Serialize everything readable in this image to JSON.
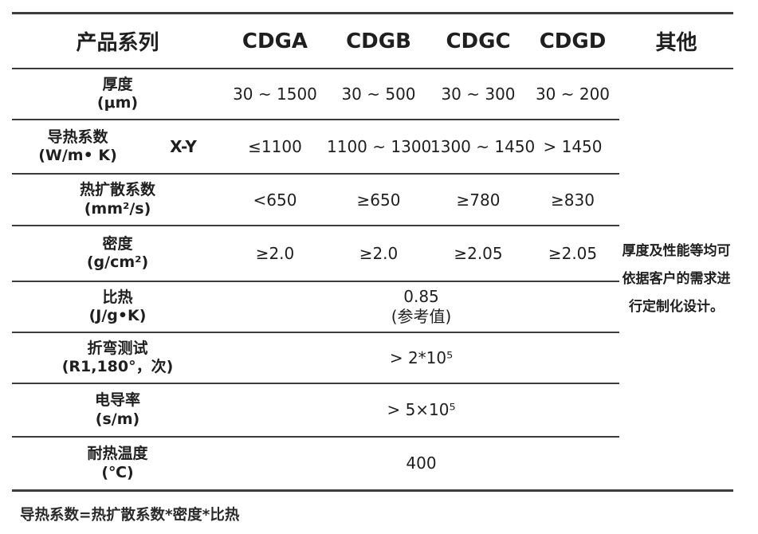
{
  "table": {
    "header": {
      "series_label": "产品系列",
      "col_a": "CDGA",
      "col_b": "CDGB",
      "col_c": "CDGC",
      "col_d": "CDGD",
      "other": "其他"
    },
    "rows": {
      "thickness": {
        "name": "厚度",
        "unit": "(μm)",
        "values": [
          "30 ~ 1500",
          "30 ~ 500",
          "30 ~ 300",
          "30 ~ 200"
        ]
      },
      "thermal_conductivity": {
        "name": "导热系数",
        "unit": "(W/m• K)",
        "sublabel": "X-Y",
        "values": [
          "≤1100",
          "1100 ~ 1300",
          "1300 ~ 1450",
          "> 1450"
        ]
      },
      "thermal_diffusivity": {
        "name": "热扩散系数",
        "unit": "(mm²/s)",
        "values": [
          "<650",
          "≥650",
          "≥780",
          "≥830"
        ]
      },
      "density": {
        "name": "密度",
        "unit": "(g/cm²)",
        "values": [
          "≥2.0",
          "≥2.0",
          "≥2.05",
          "≥2.05"
        ]
      },
      "specific_heat": {
        "name": "比热",
        "unit": "(J/g•K)",
        "merged_line1": "0.85",
        "merged_line2": "(参考值)"
      },
      "bend_test": {
        "name": "折弯测试",
        "unit": "(R1,180°，次)",
        "merged": "> 2*10⁵"
      },
      "electrical_conductivity": {
        "name": "电导率",
        "unit": "(s/m)",
        "merged": "> 5×10⁵"
      },
      "heat_resistance": {
        "name": "耐热温度",
        "unit": "(℃)",
        "merged": "400"
      }
    },
    "other_column_note": {
      "line1": "厚度及性能等均可",
      "line2": "依据客户的需求进",
      "line3": "行定制化设计。"
    },
    "footnote": "导热系数=热扩散系数*密度*比热"
  },
  "colors": {
    "line": "#3b3b3b",
    "text": "#1f1f1f",
    "background": "#ffffff"
  }
}
